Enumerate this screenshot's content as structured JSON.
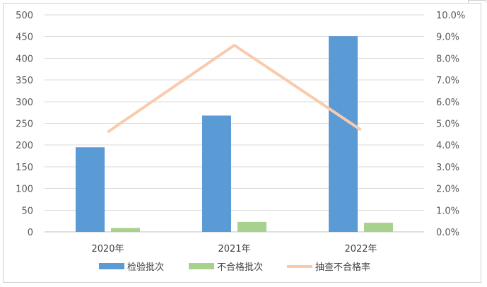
{
  "chart_data": {
    "type": "bar",
    "categories": [
      "2020年",
      "2021年",
      "2022年"
    ],
    "series": [
      {
        "name": "检验批次",
        "kind": "bar",
        "axis": "left",
        "color": "#5b9bd5",
        "values": [
          195,
          268,
          451
        ]
      },
      {
        "name": "不合格批次",
        "kind": "bar",
        "axis": "left",
        "color": "#a9d18e",
        "values": [
          9,
          23,
          21
        ]
      },
      {
        "name": "抽查不合格率",
        "kind": "line",
        "axis": "right",
        "color": "#f8cbad",
        "values": [
          4.6,
          8.6,
          4.7
        ]
      }
    ],
    "y_left": {
      "min": 0,
      "max": 500,
      "step": 50,
      "ticks": [
        "0",
        "50",
        "100",
        "150",
        "200",
        "250",
        "300",
        "350",
        "400",
        "450",
        "500"
      ]
    },
    "y_right": {
      "min": 0,
      "max": 10,
      "step": 1,
      "ticks": [
        "0.0%",
        "1.0%",
        "2.0%",
        "3.0%",
        "4.0%",
        "5.0%",
        "6.0%",
        "7.0%",
        "8.0%",
        "9.0%",
        "10.0%"
      ]
    },
    "grid": true,
    "legend_position": "bottom",
    "title": "",
    "xlabel": "",
    "ylabel": ""
  }
}
